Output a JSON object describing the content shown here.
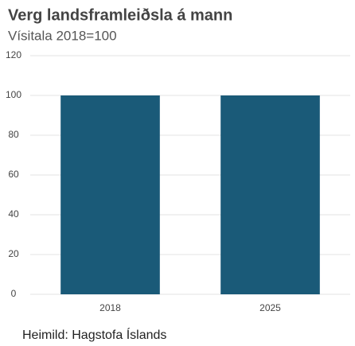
{
  "chart_data": {
    "type": "bar",
    "title": "Verg landsframleiðsla á mann",
    "subtitle": "Vísitala 2018=100",
    "categories": [
      "2018",
      "2025"
    ],
    "values": [
      100,
      100
    ],
    "color": "#1a5a78",
    "ylim": [
      0,
      120
    ],
    "yticks": [
      0,
      20,
      40,
      60,
      80,
      100,
      120
    ],
    "grid": true,
    "source": "Heimild: Hagstofa Íslands"
  }
}
